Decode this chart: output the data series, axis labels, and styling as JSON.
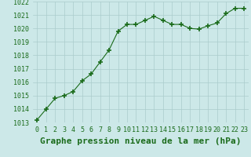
{
  "x": [
    0,
    1,
    2,
    3,
    4,
    5,
    6,
    7,
    8,
    9,
    10,
    11,
    12,
    13,
    14,
    15,
    16,
    17,
    18,
    19,
    20,
    21,
    22,
    23
  ],
  "y": [
    1013.2,
    1014.0,
    1014.8,
    1015.0,
    1015.3,
    1016.1,
    1016.6,
    1017.5,
    1018.4,
    1019.8,
    1020.3,
    1020.3,
    1020.6,
    1020.9,
    1020.6,
    1020.3,
    1020.3,
    1020.0,
    1019.95,
    1020.2,
    1020.4,
    1021.1,
    1021.5,
    1021.5
  ],
  "line_color": "#1a6b1a",
  "marker": "+",
  "marker_size": 4,
  "bg_color": "#cce8e8",
  "grid_color": "#aacccc",
  "xlabel": "Graphe pression niveau de la mer (hPa)",
  "xlabel_fontsize": 8,
  "ylim": [
    1013,
    1022
  ],
  "yticks": [
    1013,
    1014,
    1015,
    1016,
    1017,
    1018,
    1019,
    1020,
    1021,
    1022
  ],
  "xticks": [
    0,
    1,
    2,
    3,
    4,
    5,
    6,
    7,
    8,
    9,
    10,
    11,
    12,
    13,
    14,
    15,
    16,
    17,
    18,
    19,
    20,
    21,
    22,
    23
  ],
  "tick_fontsize": 6,
  "tick_color": "#1a6b1a",
  "xlabel_color": "#1a6b1a",
  "linewidth": 0.8,
  "marker_linewidth": 1.2
}
